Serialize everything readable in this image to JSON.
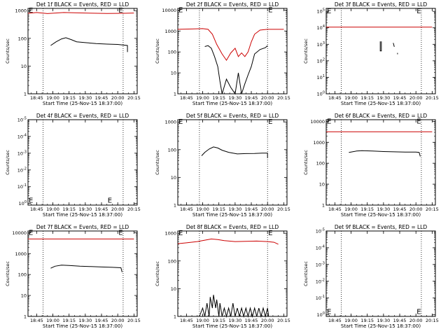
{
  "chart_data": [
    {
      "type": "line",
      "scale": "log",
      "title": "Det 1f BLACK = Events, RED = LLD",
      "ylabel": "Counts/sec",
      "xlabel": "Start Time (25-Nov-15 18:37:00)",
      "x_ticks": [
        "18:45",
        "19:00",
        "19:15",
        "19:30",
        "19:45",
        "20:00",
        "20:15"
      ],
      "y_ticks": [
        "1",
        "10",
        "100",
        "1000"
      ],
      "ylim": [
        1,
        1200
      ],
      "vlines": [
        "18:51",
        "20:05"
      ],
      "marks": [
        {
          "text": "E",
          "x": "18:37",
          "y": 1000
        },
        {
          "text": "E",
          "x": "20:00",
          "y": 1000
        }
      ],
      "series": [
        {
          "color": "#cc0000",
          "points": [
            [
              "18:37",
              800
            ],
            [
              "18:45",
              850
            ],
            [
              "18:55",
              780
            ],
            [
              "19:10",
              850
            ],
            [
              "19:30",
              820
            ],
            [
              "19:50",
              790
            ],
            [
              "20:05",
              800
            ],
            [
              "20:15",
              820
            ]
          ]
        },
        {
          "color": "#000000",
          "points": [
            [
              "18:58",
              55
            ],
            [
              "19:03",
              75
            ],
            [
              "19:08",
              95
            ],
            [
              "19:12",
              105
            ],
            [
              "19:17",
              90
            ],
            [
              "19:22",
              75
            ],
            [
              "19:30",
              70
            ],
            [
              "19:40",
              65
            ],
            [
              "19:50",
              62
            ],
            [
              "20:00",
              60
            ],
            [
              "20:09",
              55
            ],
            [
              "20:09",
              32
            ]
          ]
        }
      ]
    },
    {
      "type": "line",
      "scale": "log",
      "title": "Det 2f BLACK = Events, RED = LLD",
      "ylabel": "Counts/sec",
      "xlabel": "Start Time (25-Nov-15 18:37:00)",
      "x_ticks": [
        "18:45",
        "19:00",
        "19:15",
        "19:30",
        "19:45",
        "20:00",
        "20:15"
      ],
      "y_ticks": [
        "1",
        "10",
        "100",
        "1000",
        "10000"
      ],
      "ylim": [
        1,
        12000
      ],
      "vlines": [
        "18:57",
        "20:00"
      ],
      "marks": [
        {
          "text": "E",
          "x": "18:37",
          "y": 10000
        },
        {
          "text": "E",
          "x": "20:00",
          "y": 10000
        }
      ],
      "series": [
        {
          "color": "#cc0000",
          "points": [
            [
              "18:37",
              1200
            ],
            [
              "18:50",
              1250
            ],
            [
              "19:00",
              1300
            ],
            [
              "19:05",
              1200
            ],
            [
              "19:09",
              700
            ],
            [
              "19:13",
              230
            ],
            [
              "19:18",
              80
            ],
            [
              "19:22",
              40
            ],
            [
              "19:26",
              90
            ],
            [
              "19:30",
              150
            ],
            [
              "19:33",
              60
            ],
            [
              "19:36",
              90
            ],
            [
              "19:39",
              60
            ],
            [
              "19:42",
              100
            ],
            [
              "19:45",
              300
            ],
            [
              "19:48",
              700
            ],
            [
              "19:53",
              1100
            ],
            [
              "20:00",
              1200
            ],
            [
              "20:15",
              1200
            ]
          ]
        },
        {
          "color": "#000000",
          "points": [
            [
              "19:02",
              180
            ],
            [
              "19:05",
              200
            ],
            [
              "19:08",
              150
            ],
            [
              "19:11",
              60
            ],
            [
              "19:14",
              20
            ],
            [
              "19:16",
              4
            ],
            [
              "19:18",
              1
            ],
            [
              "19:22",
              5
            ],
            [
              "19:26",
              2
            ],
            [
              "19:30",
              1
            ],
            [
              "19:33",
              10
            ],
            [
              "19:36",
              1
            ],
            [
              "19:39",
              3
            ],
            [
              "19:42",
              8
            ],
            [
              "19:45",
              20
            ],
            [
              "19:48",
              80
            ],
            [
              "19:53",
              130
            ],
            [
              "19:58",
              160
            ],
            [
              "20:00",
              200
            ]
          ]
        }
      ]
    },
    {
      "type": "line",
      "scale": "log",
      "title": "Det 3f BLACK = Events, RED = LLD",
      "ylabel": "Counts/sec",
      "xlabel": "Start Time (25-Nov-15 18:37:00)",
      "x_ticks": [
        "18:45",
        "19:00",
        "19:15",
        "19:30",
        "19:45",
        "20:00",
        "20:15"
      ],
      "y_ticks": [
        "10^0",
        "10^1",
        "10^2",
        "10^3",
        "10^4",
        "10^5"
      ],
      "ylim": [
        1,
        150000
      ],
      "vlines": [
        "18:51",
        "20:05"
      ],
      "marks": [
        {
          "text": "E",
          "x": "18:37",
          "y": 100000
        },
        {
          "text": "E",
          "x": "20:00",
          "y": 100000
        }
      ],
      "series": [
        {
          "color": "#cc0000",
          "points": [
            [
              "18:37",
              11000
            ],
            [
              "20:15",
              11000
            ]
          ]
        },
        {
          "color": "#000000",
          "points": [
            [
              "19:27",
              1500
            ],
            [
              "19:27",
              400
            ],
            [
              "19:28",
              400
            ],
            [
              "19:28",
              1500
            ]
          ]
        },
        {
          "color": "#000000",
          "points": [
            [
              "19:39",
              1200
            ],
            [
              "19:40",
              700
            ]
          ]
        },
        {
          "color": "#000000",
          "points": [
            [
              "19:43",
              300
            ],
            [
              "19:43",
              250
            ]
          ]
        }
      ]
    },
    {
      "type": "line",
      "scale": "log",
      "title": "Det 4f BLACK = Events, RED = LLD",
      "ylabel": "Counts/sec",
      "xlabel": "Start Time (25-Nov-15 18:37:00)",
      "x_ticks": [
        "18:45",
        "19:00",
        "19:15",
        "19:30",
        "19:45",
        "20:00",
        "20:15"
      ],
      "y_ticks": [
        "10^0",
        "10^-1",
        "10^-2",
        "10^-3",
        "10^-4",
        "10^-5"
      ],
      "ylim": [
        8e-06,
        1
      ],
      "vlines": [
        "18:51",
        "20:05"
      ],
      "marks": [
        {
          "text": "E",
          "x": "18:37",
          "y": 1.5e-05
        },
        {
          "text": "E",
          "x": "19:50",
          "y": 1.5e-05
        }
      ],
      "series": []
    },
    {
      "type": "line",
      "scale": "log",
      "title": "Det 5f BLACK = Events, RED = LLD",
      "ylabel": "Counts/sec",
      "xlabel": "Start Time (25-Nov-15 18:37:00)",
      "x_ticks": [
        "18:45",
        "19:00",
        "19:15",
        "19:30",
        "19:45",
        "20:00",
        "20:15"
      ],
      "y_ticks": [
        "1",
        "10",
        "100",
        "1000"
      ],
      "ylim": [
        1,
        1200
      ],
      "vlines": [
        "18:57",
        "20:00"
      ],
      "marks": [
        {
          "text": "E",
          "x": "18:37",
          "y": 1000
        },
        {
          "text": "E",
          "x": "20:00",
          "y": 1000
        }
      ],
      "series": [
        {
          "color": "#000000",
          "points": [
            [
              "18:59",
              60
            ],
            [
              "19:02",
              80
            ],
            [
              "19:06",
              105
            ],
            [
              "19:10",
              125
            ],
            [
              "19:14",
              115
            ],
            [
              "19:18",
              95
            ],
            [
              "19:24",
              80
            ],
            [
              "19:32",
              70
            ],
            [
              "19:40",
              72
            ],
            [
              "19:48",
              73
            ],
            [
              "19:55",
              75
            ],
            [
              "20:00",
              75
            ],
            [
              "20:00",
              50
            ]
          ]
        }
      ]
    },
    {
      "type": "line",
      "scale": "log",
      "title": "Det 6f BLACK = Events, RED = LLD",
      "ylabel": "Counts/sec",
      "xlabel": "Start Time (25-Nov-15 18:37:00)",
      "x_ticks": [
        "18:45",
        "19:00",
        "19:15",
        "19:30",
        "19:45",
        "20:00",
        "20:15"
      ],
      "y_ticks": [
        "1",
        "10",
        "100",
        "1000",
        "10000"
      ],
      "ylim": [
        1,
        12000
      ],
      "vlines": [
        "18:51",
        "20:05"
      ],
      "marks": [
        {
          "text": "E",
          "x": "18:37",
          "y": 10000
        },
        {
          "text": "E",
          "x": "20:00",
          "y": 10000
        }
      ],
      "series": [
        {
          "color": "#cc0000",
          "points": [
            [
              "18:37",
              3200
            ],
            [
              "20:15",
              3200
            ]
          ]
        },
        {
          "color": "#000000",
          "points": [
            [
              "18:58",
              330
            ],
            [
              "19:05",
              380
            ],
            [
              "19:10",
              400
            ],
            [
              "19:20",
              380
            ],
            [
              "19:30",
              360
            ],
            [
              "19:40",
              350
            ],
            [
              "19:50",
              340
            ],
            [
              "20:00",
              340
            ],
            [
              "20:03",
              330
            ],
            [
              "20:04",
              210
            ]
          ]
        }
      ]
    },
    {
      "type": "line",
      "scale": "log",
      "title": "Det 7f BLACK = Events, RED = LLD",
      "ylabel": "Counts/sec",
      "xlabel": "Start Time (25-Nov-15 18:37:00)",
      "x_ticks": [
        "18:45",
        "19:00",
        "19:15",
        "19:30",
        "19:45",
        "20:00",
        "20:15"
      ],
      "y_ticks": [
        "1",
        "10",
        "100",
        "1000",
        "10000"
      ],
      "ylim": [
        1,
        12000
      ],
      "vlines": [
        "18:51",
        "20:05"
      ],
      "marks": [
        {
          "text": "E",
          "x": "18:37",
          "y": 10000
        },
        {
          "text": "E",
          "x": "20:00",
          "y": 10000
        }
      ],
      "series": [
        {
          "color": "#cc0000",
          "points": [
            [
              "18:37",
              5000
            ],
            [
              "20:15",
              5000
            ]
          ]
        },
        {
          "color": "#000000",
          "points": [
            [
              "18:58",
              200
            ],
            [
              "19:02",
              250
            ],
            [
              "19:08",
              280
            ],
            [
              "19:15",
              270
            ],
            [
              "19:25",
              250
            ],
            [
              "19:35",
              240
            ],
            [
              "19:45",
              230
            ],
            [
              "19:55",
              220
            ],
            [
              "20:03",
              210
            ],
            [
              "20:04",
              130
            ]
          ]
        }
      ]
    },
    {
      "type": "line",
      "scale": "log",
      "title": "Det 8f BLACK = Events, RED = LLD",
      "ylabel": "Counts/sec",
      "xlabel": "Start Time (25-Nov-15 18:37:00)",
      "x_ticks": [
        "18:45",
        "19:00",
        "19:15",
        "19:30",
        "19:45",
        "20:00",
        "20:15"
      ],
      "y_ticks": [
        "1",
        "10",
        "100",
        "1000"
      ],
      "ylim": [
        1,
        1200
      ],
      "vlines": [
        "18:57",
        "20:00"
      ],
      "marks": [
        {
          "text": "E",
          "x": "18:37",
          "y": 1000
        },
        {
          "text": "E",
          "x": "20:00",
          "y": 1000
        }
      ],
      "series": [
        {
          "color": "#cc0000",
          "points": [
            [
              "18:37",
              420
            ],
            [
              "18:45",
              450
            ],
            [
              "18:55",
              500
            ],
            [
              "19:02",
              560
            ],
            [
              "19:08",
              620
            ],
            [
              "19:14",
              590
            ],
            [
              "19:20",
              540
            ],
            [
              "19:30",
              500
            ],
            [
              "19:40",
              510
            ],
            [
              "19:50",
              520
            ],
            [
              "20:00",
              500
            ],
            [
              "20:06",
              470
            ],
            [
              "20:10",
              400
            ]
          ]
        },
        {
          "color": "#000000",
          "points": [
            [
              "18:57",
              1
            ],
            [
              "19:00",
              2
            ],
            [
              "19:02",
              1
            ],
            [
              "19:04",
              3
            ],
            [
              "19:06",
              1
            ],
            [
              "19:07",
              5
            ],
            [
              "19:09",
              2
            ],
            [
              "19:10",
              6
            ],
            [
              "19:12",
              2
            ],
            [
              "19:13",
              4
            ],
            [
              "19:15",
              1
            ],
            [
              "19:16",
              3
            ],
            [
              "19:18",
              1
            ],
            [
              "19:20",
              2
            ],
            [
              "19:22",
              1
            ],
            [
              "19:24",
              2
            ],
            [
              "19:26",
              1
            ],
            [
              "19:28",
              3
            ],
            [
              "19:30",
              1
            ],
            [
              "19:32",
              2
            ],
            [
              "19:34",
              1
            ],
            [
              "19:36",
              2
            ],
            [
              "19:38",
              1
            ],
            [
              "19:40",
              2
            ],
            [
              "19:42",
              1
            ],
            [
              "19:44",
              2
            ],
            [
              "19:46",
              1
            ],
            [
              "19:48",
              2
            ],
            [
              "19:50",
              1
            ],
            [
              "19:52",
              2
            ],
            [
              "19:54",
              1
            ],
            [
              "19:56",
              2
            ],
            [
              "19:58",
              1
            ],
            [
              "20:00",
              2
            ],
            [
              "20:01",
              1
            ]
          ]
        }
      ]
    },
    {
      "type": "line",
      "scale": "log",
      "title": "Det 9f BLACK = Events, RED = LLD",
      "ylabel": "Counts/sec",
      "xlabel": "Start Time (25-Nov-15 18:37:00)",
      "x_ticks": [
        "18:45",
        "19:00",
        "19:15",
        "19:30",
        "19:45",
        "20:00",
        "20:15"
      ],
      "y_ticks": [
        "10^0",
        "10^-1",
        "10^-2",
        "10^-3",
        "10^-4",
        "10^-5"
      ],
      "ylim": [
        8e-06,
        1
      ],
      "vlines": [
        "18:51",
        "20:05"
      ],
      "marks": [
        {
          "text": "E",
          "x": "18:37",
          "y": 1.5e-05
        },
        {
          "text": "E",
          "x": "20:00",
          "y": 1.5e-05
        }
      ],
      "series": []
    }
  ]
}
